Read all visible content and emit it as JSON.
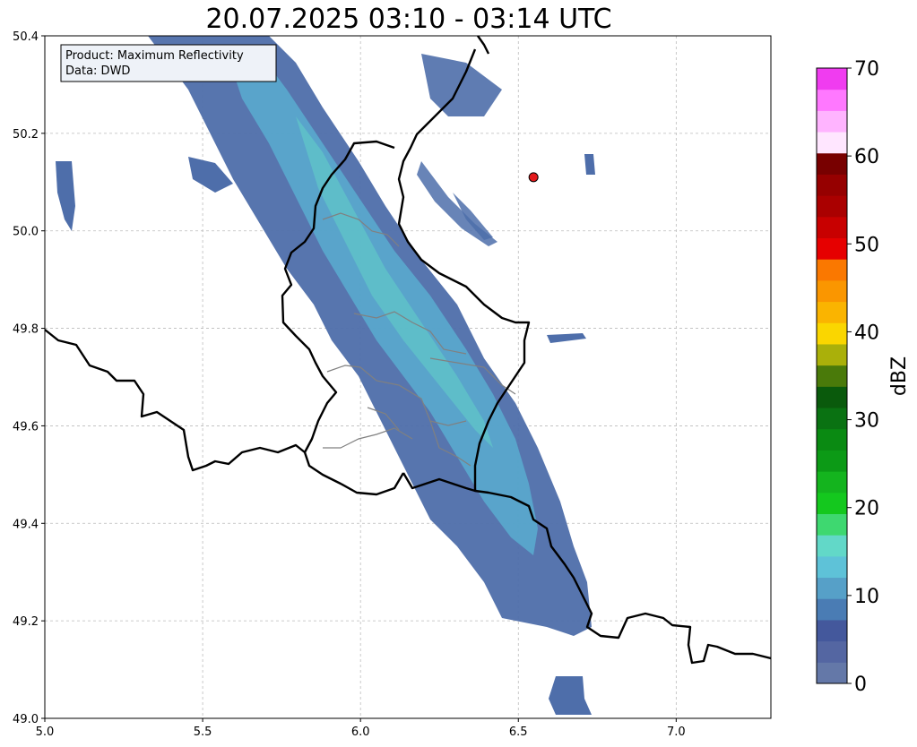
{
  "title": "20.07.2025 03:10 - 03:14 UTC",
  "info_box": {
    "product": "Product: Maximum Reflectivity",
    "data": "Data: DWD"
  },
  "map_axes": {
    "xlim": [
      5.0,
      7.3
    ],
    "ylim": [
      49.0,
      50.4
    ],
    "x_ticks": [
      {
        "value": 5.0,
        "label": "5.0"
      },
      {
        "value": 5.5,
        "label": "5.5"
      },
      {
        "value": 6.0,
        "label": "6.0"
      },
      {
        "value": 6.5,
        "label": "6.5"
      },
      {
        "value": 7.0,
        "label": "7.0"
      }
    ],
    "y_ticks": [
      {
        "value": 49.0,
        "label": "49.0"
      },
      {
        "value": 49.2,
        "label": "49.2"
      },
      {
        "value": 49.4,
        "label": "49.4"
      },
      {
        "value": 49.6,
        "label": "49.6"
      },
      {
        "value": 49.8,
        "label": "49.8"
      },
      {
        "value": 50.0,
        "label": "50.0"
      },
      {
        "value": 50.2,
        "label": "50.2"
      },
      {
        "value": 50.4,
        "label": "50.4"
      }
    ],
    "grid": true
  },
  "marker": {
    "lon": 6.548,
    "lat": 50.11,
    "color": "#e31a1c"
  },
  "colorbar": {
    "label": "dBZ",
    "range": [
      0,
      70
    ],
    "ticks": [
      {
        "value": 0,
        "label": "0"
      },
      {
        "value": 10,
        "label": "10"
      },
      {
        "value": 20,
        "label": "20"
      },
      {
        "value": 30,
        "label": "30"
      },
      {
        "value": 40,
        "label": "40"
      },
      {
        "value": 50,
        "label": "50"
      },
      {
        "value": 60,
        "label": "60"
      },
      {
        "value": 70,
        "label": "70"
      }
    ],
    "colors": [
      "#6478a8",
      "#5466a2",
      "#44589c",
      "#4a7cb4",
      "#56a0c8",
      "#5ec2d8",
      "#62d8c8",
      "#3ed870",
      "#14c81e",
      "#14b41e",
      "#0c9a16",
      "#0a8a12",
      "#0a7212",
      "#0a5a0c",
      "#4a7a0a",
      "#aab00a",
      "#fad600",
      "#fab400",
      "#fa9600",
      "#fa7800",
      "#e60000",
      "#c80000",
      "#aa0000",
      "#960000",
      "#780000",
      "#ffe6ff",
      "#ffb4ff",
      "#ff78ff",
      "#f03cf0"
    ]
  }
}
